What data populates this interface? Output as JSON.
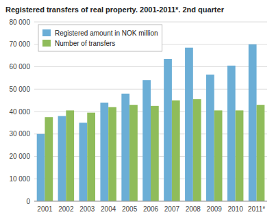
{
  "chart_data": {
    "type": "bar",
    "title": "Registered transfers of real property. 2001-2011*. 2nd quarter",
    "categories": [
      "2001",
      "2002",
      "2003",
      "2004",
      "2005",
      "2006",
      "2007",
      "2008",
      "2009",
      "2010",
      "2011*"
    ],
    "series": [
      {
        "name": "Registered amount in NOK million",
        "color": "#6baed6",
        "values": [
          30000,
          38000,
          35000,
          44000,
          48000,
          54000,
          63500,
          68500,
          56500,
          60500,
          70000
        ]
      },
      {
        "name": "Number of transfers",
        "color": "#8fbc5a",
        "values": [
          37500,
          40500,
          39500,
          42000,
          43000,
          42500,
          45000,
          45500,
          40500,
          40500,
          43000
        ]
      }
    ],
    "ylim": [
      0,
      80000
    ],
    "yticks": [
      0,
      {
        "value": 10000,
        "label": "10 000"
      },
      {
        "value": 20000,
        "label": "20 000"
      },
      {
        "value": 30000,
        "label": "30 000"
      },
      {
        "value": 40000,
        "label": "40 000"
      },
      {
        "value": 50000,
        "label": "50 000"
      },
      {
        "value": 60000,
        "label": "60 000"
      },
      {
        "value": 70000,
        "label": "70 000"
      },
      {
        "value": 80000,
        "label": "80 000"
      }
    ],
    "grid": true,
    "legend": "upper left"
  }
}
